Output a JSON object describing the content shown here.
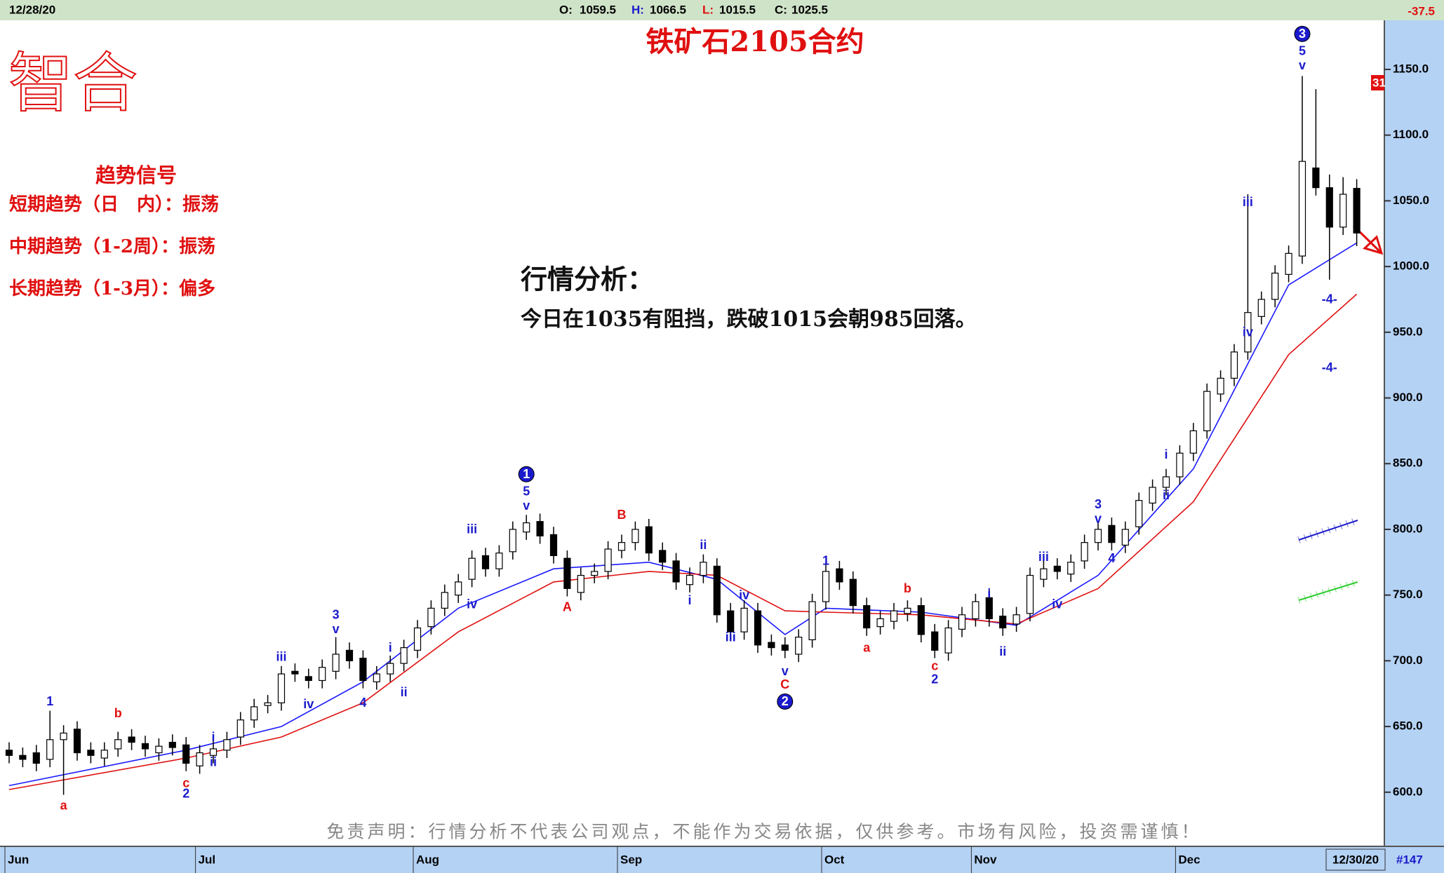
{
  "header": {
    "date": "12/28/20",
    "open_label": "O:",
    "open": 1059.5,
    "high_label": "H:",
    "high": 1066.5,
    "low_label": "L:",
    "low": 1015.5,
    "close_label": "C:",
    "close": 1025.5,
    "change": -37.5
  },
  "logo": "智合",
  "signals": {
    "title": "趋势信号",
    "lines": [
      "短期趋势（日　内）：振荡",
      "中期趋势（1-2周）：振荡",
      "长期趋势（1-3月）：偏多"
    ]
  },
  "analysis": {
    "title": "行情分析：",
    "text": "今日在1035有阻挡，跌破1015会朝985回落。"
  },
  "disclaimer": "免责声明：行情分析不代表公司观点，不能作为交易依据，仅供参考。市场有风险，投资需谨慎！",
  "footer": {
    "last_date": "12/30/20",
    "bar_count": "#147"
  },
  "price_marker": "31",
  "chart_data": {
    "type": "candlestick",
    "title": "铁矿石2105合约",
    "open": [
      632,
      628,
      630,
      625,
      640,
      648,
      632,
      626,
      633,
      642,
      637,
      630,
      638,
      636,
      620,
      628,
      632,
      642,
      655,
      666,
      668,
      692,
      688,
      685,
      692,
      708,
      702,
      684,
      690,
      698,
      708,
      726,
      740,
      750,
      762,
      780,
      770,
      783,
      798,
      806,
      796,
      778,
      752,
      765,
      768,
      784,
      790,
      802,
      784,
      776,
      758,
      765,
      772,
      738,
      722,
      738,
      714,
      712,
      705,
      716,
      745,
      770,
      762,
      742,
      726,
      730,
      736,
      742,
      722,
      706,
      724,
      732,
      748,
      734,
      728,
      736,
      762,
      772,
      766,
      776,
      790,
      803,
      788,
      802,
      820,
      832,
      840,
      858,
      875,
      903,
      915,
      935,
      962,
      975,
      994,
      1008,
      1075,
      1060,
      1030,
      1059.5
    ],
    "high": [
      638,
      634,
      636,
      662,
      651,
      654,
      638,
      638,
      646,
      648,
      643,
      641,
      644,
      642,
      636,
      639,
      646,
      661,
      671,
      674,
      696,
      698,
      694,
      701,
      718,
      714,
      708,
      696,
      704,
      716,
      731,
      746,
      758,
      766,
      784,
      786,
      788,
      806,
      811,
      812,
      802,
      784,
      771,
      774,
      791,
      796,
      806,
      808,
      790,
      782,
      771,
      781,
      778,
      744,
      746,
      744,
      720,
      718,
      724,
      751,
      774,
      776,
      768,
      748,
      738,
      744,
      746,
      748,
      728,
      731,
      741,
      751,
      754,
      740,
      741,
      771,
      776,
      778,
      781,
      796,
      806,
      809,
      806,
      828,
      838,
      846,
      864,
      881,
      911,
      921,
      941,
      1055,
      981,
      1001,
      1016,
      1145,
      1135,
      1070,
      1068,
      1066.5
    ],
    "low": [
      622,
      619,
      616,
      619,
      598,
      624,
      622,
      620,
      627,
      632,
      627,
      624,
      628,
      616,
      614,
      622,
      626,
      636,
      649,
      660,
      662,
      684,
      679,
      679,
      686,
      694,
      679,
      678,
      684,
      692,
      702,
      720,
      734,
      744,
      756,
      764,
      764,
      777,
      792,
      789,
      774,
      749,
      746,
      759,
      762,
      778,
      784,
      776,
      769,
      754,
      752,
      759,
      729,
      716,
      716,
      706,
      704,
      702,
      699,
      710,
      739,
      754,
      736,
      719,
      720,
      724,
      730,
      714,
      702,
      700,
      718,
      726,
      726,
      719,
      722,
      730,
      756,
      762,
      760,
      770,
      784,
      784,
      782,
      796,
      814,
      826,
      834,
      852,
      869,
      897,
      909,
      929,
      956,
      969,
      988,
      1002,
      1054,
      990,
      1024,
      1015.5
    ],
    "close": [
      628,
      625,
      622,
      640,
      645,
      630,
      628,
      632,
      640,
      638,
      633,
      635,
      634,
      622,
      630,
      633,
      640,
      655,
      665,
      668,
      690,
      690,
      685,
      695,
      705,
      700,
      685,
      690,
      698,
      710,
      725,
      740,
      752,
      760,
      778,
      770,
      782,
      800,
      805,
      795,
      780,
      755,
      765,
      768,
      785,
      790,
      800,
      782,
      775,
      760,
      765,
      775,
      735,
      722,
      740,
      712,
      710,
      708,
      718,
      745,
      768,
      760,
      742,
      725,
      732,
      738,
      740,
      720,
      708,
      725,
      735,
      745,
      732,
      725,
      735,
      765,
      770,
      768,
      775,
      790,
      800,
      790,
      800,
      822,
      832,
      840,
      858,
      875,
      905,
      915,
      935,
      965,
      975,
      995,
      1010,
      1080,
      1060,
      1030,
      1055,
      1025.5
    ],
    "up_color": "#ffffff",
    "down_color": "#000000",
    "lines": [
      {
        "color": "#1a1aff",
        "index": [
          0,
          13,
          20,
          26,
          33,
          40,
          47,
          52,
          57,
          60,
          67,
          74,
          80,
          87,
          94,
          99
        ],
        "values": [
          605,
          632,
          650,
          684,
          740,
          770,
          775,
          762,
          720,
          740,
          737,
          727,
          765,
          846,
          986,
          1018
        ]
      },
      {
        "color": "#e01010",
        "index": [
          0,
          13,
          20,
          26,
          33,
          40,
          47,
          52,
          57,
          60,
          67,
          74,
          80,
          87,
          94,
          99
        ],
        "values": [
          602,
          626,
          642,
          668,
          722,
          760,
          768,
          765,
          738,
          737,
          735,
          728,
          755,
          821,
          933,
          979
        ]
      }
    ],
    "ylim": [
      562,
      1182
    ],
    "yticks": [
      {
        "value": 600,
        "label": "600.0"
      },
      {
        "value": 650,
        "label": "650.0"
      },
      {
        "value": 700,
        "label": "700.0"
      },
      {
        "value": 750,
        "label": "750.0"
      },
      {
        "value": 800,
        "label": "800.0"
      },
      {
        "value": 850,
        "label": "850.0"
      },
      {
        "value": 900,
        "label": "900.0"
      },
      {
        "value": 950,
        "label": "950.0"
      },
      {
        "value": 1000,
        "label": "1000.0"
      },
      {
        "value": 1050,
        "label": "1050.0"
      },
      {
        "value": 1100,
        "label": "1100.0"
      },
      {
        "value": 1150,
        "label": "1150.0"
      }
    ],
    "months": [
      {
        "label": "Jun",
        "index": 0
      },
      {
        "label": "Jul",
        "index": 14
      },
      {
        "label": "Aug",
        "index": 30
      },
      {
        "label": "Sep",
        "index": 45
      },
      {
        "label": "Oct",
        "index": 60
      },
      {
        "label": "Nov",
        "index": 71
      },
      {
        "label": "Dec",
        "index": 86
      }
    ],
    "annotations": [
      {
        "text": "1",
        "index": 3,
        "price": 669,
        "color": "#1a1acc"
      },
      {
        "text": "a",
        "index": 4,
        "price": 590,
        "color": "#e01010"
      },
      {
        "text": "b",
        "index": 8,
        "price": 660,
        "color": "#e01010"
      },
      {
        "text": "c",
        "index": 13,
        "price": 607,
        "color": "#e01010"
      },
      {
        "text": "2",
        "index": 13,
        "price": 599,
        "color": "#1a1acc"
      },
      {
        "text": "i",
        "index": 15,
        "price": 642,
        "color": "#1a1acc"
      },
      {
        "text": "ii",
        "index": 15,
        "price": 623,
        "color": "#1a1acc"
      },
      {
        "text": "iii",
        "index": 20,
        "price": 703,
        "color": "#1a1acc"
      },
      {
        "text": "iv",
        "index": 22,
        "price": 667,
        "color": "#1a1acc"
      },
      {
        "text": "3",
        "index": 24,
        "price": 735,
        "color": "#1a1acc"
      },
      {
        "text": "v",
        "index": 24,
        "price": 724,
        "color": "#1a1acc"
      },
      {
        "text": "4",
        "index": 26,
        "price": 668,
        "color": "#1a1acc"
      },
      {
        "text": "i",
        "index": 28,
        "price": 710,
        "color": "#1a1acc"
      },
      {
        "text": "ii",
        "index": 29,
        "price": 676,
        "color": "#1a1acc"
      },
      {
        "text": "iii",
        "index": 34,
        "price": 800,
        "color": "#1a1acc"
      },
      {
        "text": "iv",
        "index": 34,
        "price": 743,
        "color": "#1a1acc"
      },
      {
        "text": "1",
        "index": 38,
        "price": 842,
        "color": "#1a1acc",
        "circled": true
      },
      {
        "text": "5",
        "index": 38,
        "price": 829,
        "color": "#1a1acc"
      },
      {
        "text": "v",
        "index": 38,
        "price": 818,
        "color": "#1a1acc"
      },
      {
        "text": "A",
        "index": 41,
        "price": 741,
        "color": "#e01010"
      },
      {
        "text": "B",
        "index": 45,
        "price": 811,
        "color": "#e01010"
      },
      {
        "text": "ii",
        "index": 51,
        "price": 788,
        "color": "#1a1acc"
      },
      {
        "text": "i",
        "index": 50,
        "price": 746,
        "color": "#1a1acc"
      },
      {
        "text": "iii",
        "index": 53,
        "price": 718,
        "color": "#1a1acc"
      },
      {
        "text": "iv",
        "index": 54,
        "price": 750,
        "color": "#1a1acc"
      },
      {
        "text": "v",
        "index": 57,
        "price": 692,
        "color": "#1a1acc"
      },
      {
        "text": "C",
        "index": 57,
        "price": 682,
        "color": "#e01010"
      },
      {
        "text": "2",
        "index": 57,
        "price": 669,
        "color": "#1a1acc",
        "circled": true
      },
      {
        "text": "1",
        "index": 60,
        "price": 776,
        "color": "#1a1acc"
      },
      {
        "text": "a",
        "index": 63,
        "price": 710,
        "color": "#e01010"
      },
      {
        "text": "b",
        "index": 66,
        "price": 755,
        "color": "#e01010"
      },
      {
        "text": "c",
        "index": 68,
        "price": 696,
        "color": "#e01010"
      },
      {
        "text": "2",
        "index": 68,
        "price": 686,
        "color": "#1a1acc"
      },
      {
        "text": "i",
        "index": 72,
        "price": 751,
        "color": "#1a1acc"
      },
      {
        "text": "ii",
        "index": 73,
        "price": 707,
        "color": "#1a1acc"
      },
      {
        "text": "iii",
        "index": 76,
        "price": 779,
        "color": "#1a1acc"
      },
      {
        "text": "iv",
        "index": 77,
        "price": 743,
        "color": "#1a1acc"
      },
      {
        "text": "3",
        "index": 80,
        "price": 819,
        "color": "#1a1acc"
      },
      {
        "text": "v",
        "index": 80,
        "price": 808,
        "color": "#1a1acc"
      },
      {
        "text": "4",
        "index": 81,
        "price": 778,
        "color": "#1a1acc"
      },
      {
        "text": "i",
        "index": 85,
        "price": 857,
        "color": "#1a1acc"
      },
      {
        "text": "ii",
        "index": 85,
        "price": 826,
        "color": "#1a1acc"
      },
      {
        "text": "iii",
        "index": 91,
        "price": 1049,
        "color": "#1a1acc"
      },
      {
        "text": "iv",
        "index": 91,
        "price": 950,
        "color": "#1a1acc"
      },
      {
        "text": "3",
        "index": 95,
        "price": 1177,
        "color": "#1a1acc",
        "circled": true
      },
      {
        "text": "5",
        "index": 95,
        "price": 1164,
        "color": "#1a1acc"
      },
      {
        "text": "v",
        "index": 95,
        "price": 1153,
        "color": "#1a1acc"
      },
      {
        "text": "-4-",
        "index": 97,
        "price": 975,
        "color": "#1a1acc"
      },
      {
        "text": "-4-",
        "index": 97,
        "price": 923,
        "color": "#1a1acc"
      }
    ]
  }
}
